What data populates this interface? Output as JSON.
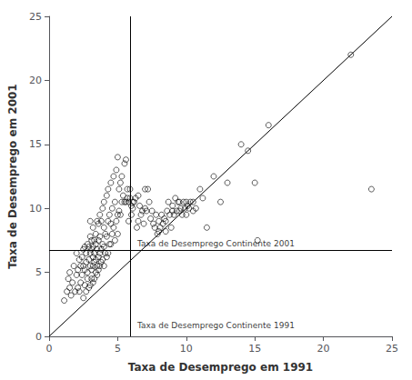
{
  "chart_data": {
    "type": "scatter",
    "xlabel": "Taxa de Desemprego em 1991",
    "ylabel": "Taxa de Desemprego em 2001",
    "xlim": [
      0,
      25
    ],
    "ylim": [
      0,
      25
    ],
    "xticks": [
      0,
      5,
      10,
      15,
      20,
      25
    ],
    "yticks": [
      0,
      5,
      10,
      15,
      20,
      25
    ],
    "grid": false,
    "marker": "open_circle",
    "color": "#000000",
    "lines": [
      {
        "x": [
          0,
          25
        ],
        "y": [
          0,
          25
        ],
        "color": "#000000"
      }
    ],
    "vlines": [
      {
        "x": 5.9,
        "label": "Taxa de Desemprego Continente 1991",
        "color": "#000000"
      }
    ],
    "hlines": [
      {
        "y": 6.7,
        "label": "Taxa de Desemprego Continente 2001",
        "color": "#000000"
      }
    ],
    "x": [
      1.1,
      1.3,
      1.4,
      1.5,
      1.5,
      1.6,
      1.7,
      1.8,
      1.9,
      2.0,
      2.0,
      2.1,
      2.1,
      2.2,
      2.2,
      2.3,
      2.3,
      2.4,
      2.4,
      2.5,
      2.5,
      2.5,
      2.6,
      2.6,
      2.6,
      2.7,
      2.7,
      2.7,
      2.8,
      2.8,
      2.8,
      2.9,
      2.9,
      2.9,
      3.0,
      3.0,
      3.0,
      3.0,
      3.0,
      3.1,
      3.1,
      3.1,
      3.1,
      3.2,
      3.2,
      3.2,
      3.2,
      3.2,
      3.3,
      3.3,
      3.3,
      3.3,
      3.4,
      3.4,
      3.4,
      3.4,
      3.5,
      3.5,
      3.5,
      3.5,
      3.6,
      3.6,
      3.6,
      3.6,
      3.7,
      3.7,
      3.7,
      3.7,
      3.8,
      3.8,
      3.8,
      3.9,
      3.9,
      3.9,
      4.0,
      4.0,
      4.0,
      4.0,
      4.1,
      4.1,
      4.2,
      4.2,
      4.2,
      4.3,
      4.3,
      4.3,
      4.4,
      4.4,
      4.5,
      4.5,
      4.5,
      4.6,
      4.6,
      4.7,
      4.7,
      4.8,
      4.8,
      4.9,
      4.9,
      5.0,
      5.0,
      5.0,
      5.1,
      5.1,
      5.2,
      5.2,
      5.3,
      5.3,
      5.4,
      5.5,
      5.5,
      5.6,
      5.6,
      5.7,
      5.7,
      5.8,
      5.8,
      5.9,
      5.9,
      6.0,
      6.0,
      6.1,
      6.1,
      6.2,
      6.3,
      6.4,
      6.5,
      6.5,
      6.6,
      6.7,
      6.8,
      6.9,
      7.0,
      7.0,
      7.1,
      7.2,
      7.3,
      7.4,
      7.5,
      7.6,
      7.7,
      7.8,
      7.9,
      8.0,
      8.0,
      8.1,
      8.2,
      8.3,
      8.4,
      8.5,
      8.5,
      8.6,
      8.7,
      8.8,
      8.9,
      9.0,
      9.0,
      9.1,
      9.2,
      9.3,
      9.4,
      9.5,
      9.5,
      9.6,
      9.7,
      9.8,
      9.9,
      10.0,
      10.0,
      10.1,
      10.2,
      10.3,
      10.5,
      10.5,
      10.7,
      11.0,
      11.2,
      11.5,
      12.0,
      12.5,
      13.0,
      14.0,
      14.5,
      15.0,
      15.2,
      16.0,
      22.0,
      23.5
    ],
    "values": [
      2.8,
      3.5,
      4.5,
      3.8,
      5.0,
      3.2,
      4.2,
      5.5,
      3.5,
      4.8,
      6.5,
      3.8,
      5.2,
      3.5,
      6.0,
      4.2,
      5.5,
      4.8,
      6.2,
      3.0,
      5.5,
      6.8,
      4.0,
      5.2,
      7.0,
      3.5,
      5.8,
      6.5,
      4.5,
      5.0,
      7.2,
      3.8,
      6.0,
      7.0,
      4.0,
      5.5,
      6.5,
      7.8,
      9.0,
      4.5,
      5.2,
      6.8,
      7.5,
      4.2,
      5.5,
      6.2,
      7.0,
      8.5,
      4.5,
      5.8,
      6.5,
      7.5,
      5.0,
      6.0,
      7.2,
      8.0,
      4.8,
      5.5,
      6.8,
      9.0,
      5.2,
      6.2,
      7.5,
      8.8,
      5.5,
      6.5,
      7.8,
      9.5,
      5.8,
      6.8,
      9.0,
      6.0,
      7.2,
      10.0,
      5.5,
      7.0,
      8.5,
      10.5,
      6.5,
      8.0,
      6.2,
      7.8,
      11.0,
      6.5,
      9.0,
      11.5,
      7.2,
      9.5,
      7.2,
      8.8,
      12.0,
      8.0,
      10.0,
      8.5,
      12.5,
      7.5,
      10.5,
      9.0,
      13.0,
      8.0,
      9.5,
      14.0,
      9.8,
      11.5,
      9.5,
      12.0,
      10.5,
      12.5,
      11.0,
      10.5,
      13.5,
      10.5,
      13.8,
      11.5,
      10.8,
      10.5,
      9.0,
      10.8,
      11.5,
      10.2,
      9.5,
      10.5,
      10.0,
      10.5,
      10.8,
      8.5,
      9.0,
      11.0,
      10.2,
      9.5,
      9.8,
      8.8,
      11.5,
      10.0,
      9.8,
      11.5,
      10.5,
      9.2,
      9.8,
      8.8,
      8.5,
      9.5,
      8.0,
      8.2,
      9.0,
      8.5,
      9.5,
      8.8,
      9.2,
      8.2,
      9.0,
      9.8,
      10.5,
      9.5,
      8.5,
      9.8,
      10.2,
      9.5,
      10.8,
      9.8,
      10.5,
      9.8,
      10.5,
      10.0,
      9.5,
      10.5,
      10.0,
      10.5,
      9.5,
      10.2,
      10.0,
      10.5,
      10.5,
      9.8,
      10.0,
      11.5,
      10.8,
      8.5,
      12.5,
      10.5,
      12.0,
      15.0,
      14.5,
      12.0,
      7.5,
      16.5,
      22.0,
      11.5
    ]
  }
}
